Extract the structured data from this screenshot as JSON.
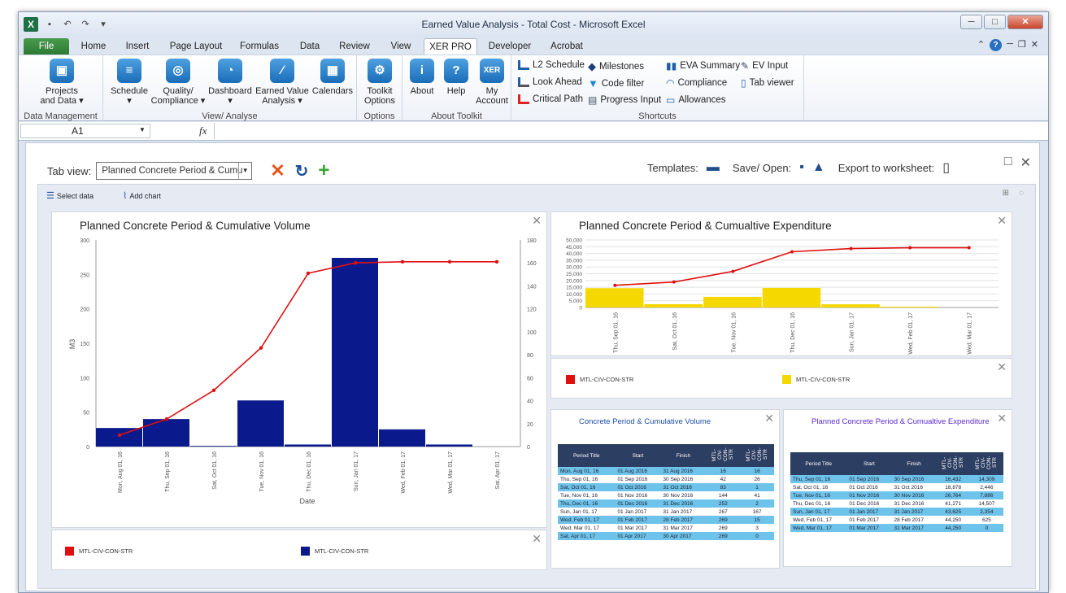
{
  "window": {
    "title": "Earned Value Analysis - Total Cost  -  Microsoft Excel"
  },
  "tabs": [
    "File",
    "Home",
    "Insert",
    "Page Layout",
    "Formulas",
    "Data",
    "Review",
    "View",
    "XER PRO",
    "Developer",
    "Acrobat"
  ],
  "ribbon": {
    "groups": {
      "data_mgmt": "Data Management",
      "view_analyse": "View/ Analyse",
      "options": "Options",
      "about": "About Toolkit",
      "shortcuts": "Shortcuts"
    },
    "projects": "Projects\nand Data ▾",
    "schedule": "Schedule\n▾",
    "quality": "Quality/\nCompliance ▾",
    "dashboard": "Dashboard\n▾",
    "ev_analysis": "Earned Value\nAnalysis ▾",
    "calendars": "Calendars",
    "toolkit_options": "Toolkit\nOptions",
    "about": "About",
    "help": "Help",
    "my_account": "My\nAccount",
    "shortcuts": [
      "L2 Schedule",
      "Look Ahead",
      "Critical Path",
      "Milestones",
      "Code filter",
      "Progress Input",
      "EVA Summary",
      "Compliance",
      "Allowances",
      "EV Input",
      "Tab viewer"
    ]
  },
  "formula": {
    "cell": "A1",
    "fx": "fx"
  },
  "toolbar": {
    "tab_view_label": "Tab view:",
    "tab_view_value": "Planned Concrete Period & Cumu",
    "templates": "Templates:",
    "save_open": "Save/ Open:",
    "export": "Export to worksheet:",
    "select_data": "Select data",
    "add_chart": "Add chart"
  },
  "chart1": {
    "title": "Planned Concrete Period & Cumulative Volume",
    "ylabel": "M3",
    "xlabel": "Date",
    "legend": [
      "MTL-CIV-CON-STR",
      "MTL-CIV-CON-STR"
    ]
  },
  "chart2": {
    "title": "Planned Concrete Period & Cumualtive Expenditure",
    "legend": [
      "MTL-CIV-CON-STR",
      "MTL-CIV-CON-STR"
    ]
  },
  "table1": {
    "title": "Concrete Period & Cumulative Volume",
    "headers": [
      "Period Title",
      "Start",
      "Finish",
      "MTL-CIV-CON-STR",
      "MTL-CIV-CON-STR"
    ],
    "rows": [
      [
        "Mon, Aug 01, 16",
        "01 Aug 2016",
        "31 Aug 2016",
        "16",
        "16"
      ],
      [
        "Thu, Sep 01, 16",
        "01 Sep 2016",
        "30 Sep 2016",
        "42",
        "26"
      ],
      [
        "Sat, Oct 01, 16",
        "01 Oct 2016",
        "31 Oct 2016",
        "83",
        "1"
      ],
      [
        "Tue, Nov 01, 16",
        "01 Nov 2016",
        "30 Nov 2016",
        "144",
        "41"
      ],
      [
        "Thu, Dec 01, 16",
        "01 Dec 2016",
        "31 Dec 2016",
        "252",
        "2"
      ],
      [
        "Sun, Jan 01, 17",
        "01 Jan 2017",
        "31 Jan 2017",
        "267",
        "167"
      ],
      [
        "Wed, Feb 01, 17",
        "01 Feb 2017",
        "28 Feb 2017",
        "269",
        "15"
      ],
      [
        "Wed, Mar 01, 17",
        "01 Mar 2017",
        "31 Mar 2017",
        "269",
        "3"
      ],
      [
        "Sat, Apr 01, 17",
        "01 Apr 2017",
        "30 Apr 2017",
        "269",
        "0"
      ]
    ]
  },
  "table2": {
    "title": "Planned Concrete Period & Cumualtive Expenditure",
    "headers": [
      "Period Title",
      "Start",
      "Finish",
      "MTL-CIV-CON-STR",
      "MTL-CIV-CON-STR"
    ],
    "rows": [
      [
        "Thu, Sep 01, 16",
        "01 Sep 2016",
        "30 Sep 2016",
        "16,432",
        "14,309"
      ],
      [
        "Sat, Oct 01, 16",
        "01 Oct 2016",
        "31 Oct 2016",
        "18,878",
        "2,446"
      ],
      [
        "Tue, Nov 01, 16",
        "01 Nov 2016",
        "30 Nov 2016",
        "26,764",
        "7,886"
      ],
      [
        "Thu, Dec 01, 16",
        "01 Dec 2016",
        "31 Dec 2016",
        "41,271",
        "14,507"
      ],
      [
        "Sun, Jan 01, 17",
        "01 Jan 2017",
        "31 Jan 2017",
        "43,625",
        "2,354"
      ],
      [
        "Wed, Feb 01, 17",
        "01 Feb 2017",
        "28 Feb 2017",
        "44,250",
        "625"
      ],
      [
        "Wed, Mar 01, 17",
        "01 Mar 2017",
        "31 Mar 2017",
        "44,250",
        "0"
      ]
    ]
  },
  "chart_data": [
    {
      "type": "bar",
      "title": "Planned Concrete Period & Cumulative Volume",
      "xlabel": "Date",
      "ylabel": "M3",
      "categories": [
        "Mon, Aug 01, 16",
        "Thu, Sep 01, 16",
        "Sat, Oct 01, 16",
        "Tue, Nov 01, 16",
        "Thu, Dec 01, 16",
        "Sun, Jan 01, 17",
        "Wed, Feb 01, 17",
        "Wed, Mar 01, 17",
        "Sat, Apr 01, 17"
      ],
      "ylim": [
        0,
        300
      ],
      "yticks": [
        0,
        50,
        100,
        150,
        200,
        250,
        300
      ],
      "y2lim": [
        0,
        180
      ],
      "y2ticks": [
        0,
        20,
        40,
        60,
        80,
        100,
        120,
        140,
        160,
        180
      ],
      "series": [
        {
          "name": "MTL-CIV-CON-STR",
          "kind": "bar",
          "axis": "left",
          "color": "#0a1a8c",
          "values": [
            27,
            40,
            1,
            67,
            3,
            274,
            25,
            3,
            0
          ]
        },
        {
          "name": "MTL-CIV-CON-STR",
          "kind": "line",
          "axis": "right",
          "color": "#e01010",
          "values": [
            10,
            24,
            49,
            86,
            151,
            160,
            161,
            161,
            161
          ]
        }
      ]
    },
    {
      "type": "bar",
      "title": "Planned Concrete Period & Cumualtive Expenditure",
      "categories": [
        "Thu, Sep 01, 16",
        "Sat, Oct 01, 16",
        "Tue, Nov 01, 16",
        "Thu, Dec 01, 16",
        "Sun, Jan 01, 17",
        "Wed, Feb 01, 17",
        "Wed, Mar 01, 17"
      ],
      "ylim": [
        0,
        50000
      ],
      "yticks": [
        0,
        5000,
        10000,
        15000,
        20000,
        25000,
        30000,
        35000,
        40000,
        45000,
        50000
      ],
      "series": [
        {
          "name": "MTL-CIV-CON-STR",
          "kind": "bar",
          "color": "#f5d800",
          "values": [
            14309,
            2446,
            7886,
            14507,
            2354,
            625,
            0
          ]
        },
        {
          "name": "MTL-CIV-CON-STR",
          "kind": "line",
          "color": "#e01010",
          "values": [
            16432,
            18878,
            26764,
            41271,
            43625,
            44250,
            44250
          ]
        }
      ]
    }
  ]
}
